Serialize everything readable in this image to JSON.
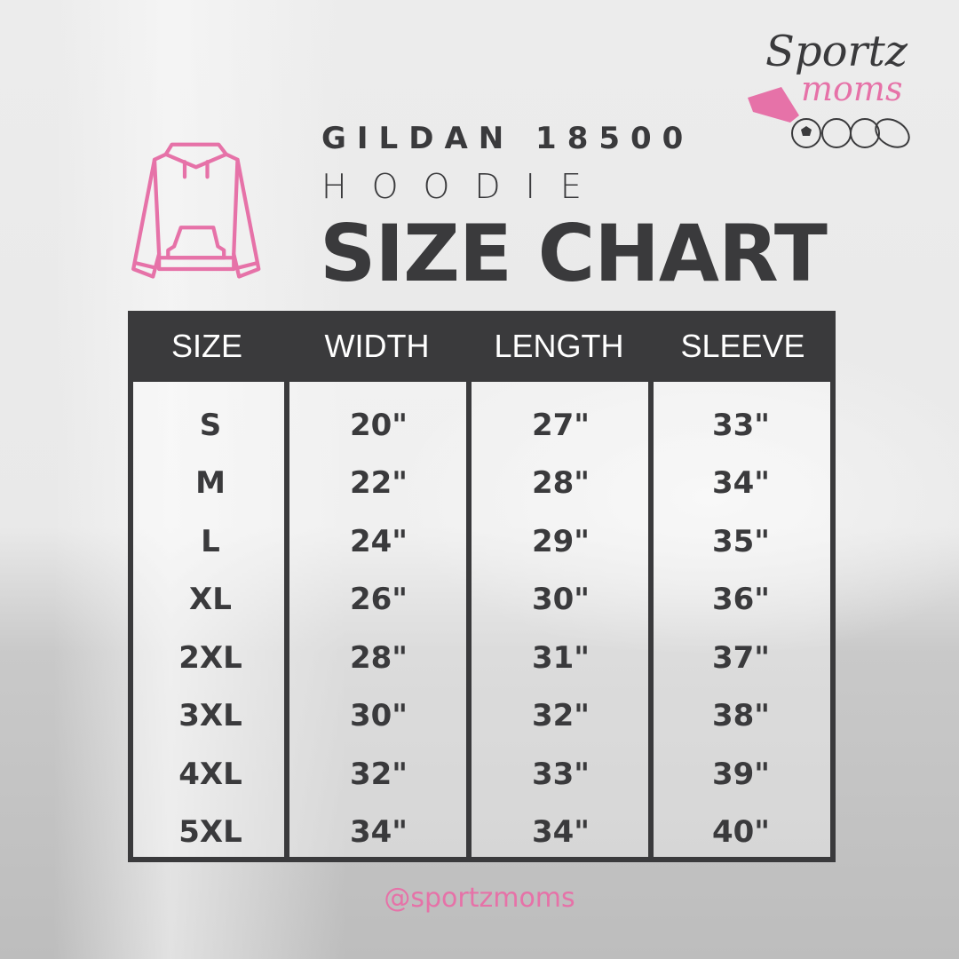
{
  "logo": {
    "line1": "Sportz",
    "line2": "moms"
  },
  "title": {
    "brand": "GILDAN 18500",
    "product": "HOODIE",
    "heading": "SIZE CHART"
  },
  "table": {
    "headers": [
      "SIZE",
      "WIDTH",
      "LENGTH",
      "SLEEVE"
    ],
    "rows": [
      [
        "S",
        "20\"",
        "27\"",
        "33\""
      ],
      [
        "M",
        "22\"",
        "28\"",
        "34\""
      ],
      [
        "L",
        "24\"",
        "29\"",
        "35\""
      ],
      [
        "XL",
        "26\"",
        "30\"",
        "36\""
      ],
      [
        "2XL",
        "28\"",
        "31\"",
        "37\""
      ],
      [
        "3XL",
        "30\"",
        "32\"",
        "38\""
      ],
      [
        "4XL",
        "32\"",
        "33\"",
        "39\""
      ],
      [
        "5XL",
        "34\"",
        "34\"",
        "40\""
      ]
    ]
  },
  "footer": {
    "handle": "@sportzmoms"
  },
  "colors": {
    "accent": "#e672a8",
    "dark": "#3a3a3c"
  },
  "icons": {
    "hoodie": "hoodie-icon",
    "logo": "sportz-moms-logo"
  }
}
